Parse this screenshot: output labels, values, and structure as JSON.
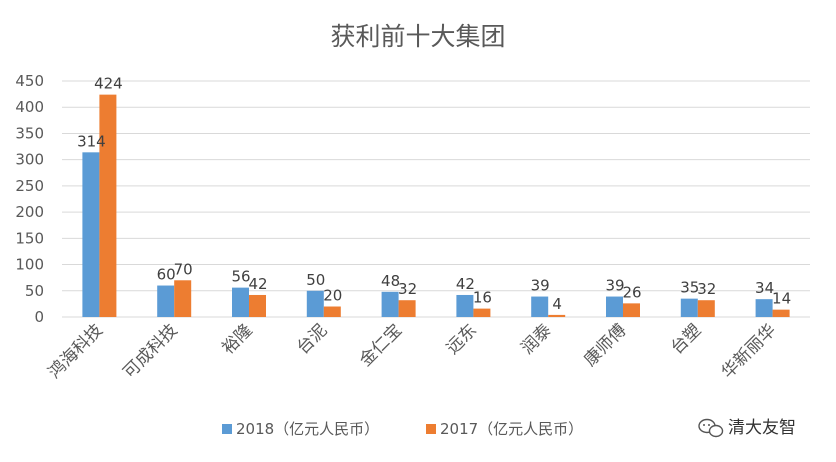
{
  "chart_data": {
    "type": "bar",
    "title": "获利前十大集团",
    "categories": [
      "鸿海科技",
      "可成科技",
      "裕隆",
      "台泥",
      "金仁宝",
      "远东",
      "润泰",
      "康师傅",
      "台塑",
      "华新丽华"
    ],
    "series": [
      {
        "name": "2018（亿元人民币）",
        "color": "#5b9bd5",
        "values": [
          314,
          60,
          56,
          50,
          48,
          42,
          39,
          39,
          35,
          34
        ]
      },
      {
        "name": "2017（亿元人民币）",
        "color": "#ed7d31",
        "values": [
          424,
          70,
          42,
          20,
          32,
          16,
          4,
          26,
          32,
          14
        ]
      }
    ],
    "ylim": [
      0,
      450
    ],
    "yticks": [
      0,
      50,
      100,
      150,
      200,
      250,
      300,
      350,
      400,
      450
    ],
    "grid": true,
    "legend": "bottom",
    "data_labels": true
  },
  "watermark": {
    "text": "清大友智",
    "icon": "wechat-bubble-icon"
  }
}
